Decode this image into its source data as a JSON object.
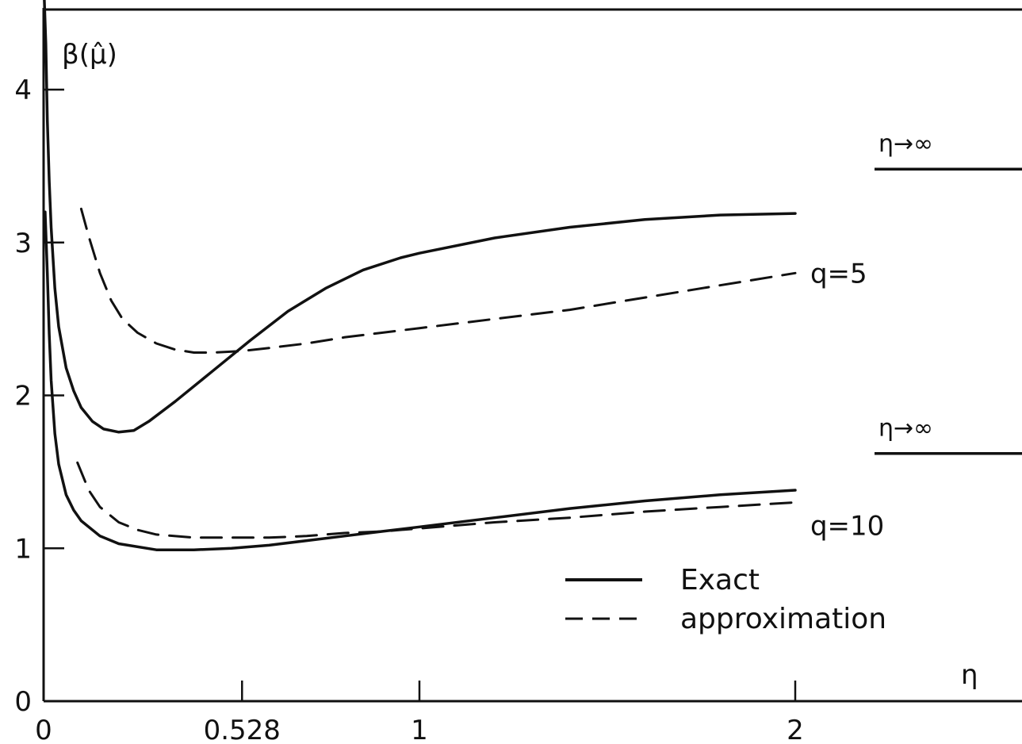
{
  "chart_data": {
    "type": "line",
    "title": "",
    "xlabel": "η",
    "ylabel": "β(μ̂)",
    "xlim": [
      0,
      2
    ],
    "ylim": [
      0,
      4.5
    ],
    "x_ticks": [
      {
        "value": 0,
        "label": "0"
      },
      {
        "value": 0.528,
        "label": "0.528"
      },
      {
        "value": 1,
        "label": "1"
      },
      {
        "value": 2,
        "label": "2"
      }
    ],
    "y_ticks": [
      {
        "value": 0,
        "label": "0"
      },
      {
        "value": 1,
        "label": "1"
      },
      {
        "value": 2,
        "label": "2"
      },
      {
        "value": 3,
        "label": "3"
      },
      {
        "value": 4,
        "label": "4"
      }
    ],
    "grid": false,
    "legend": {
      "placement": "bottom-right",
      "entries": [
        {
          "label": "Exact",
          "style": "solid"
        },
        {
          "label": "approximation",
          "style": "dashed"
        }
      ]
    },
    "series": [
      {
        "group": "q5",
        "style": "solid",
        "points": [
          [
            0.002,
            4.6
          ],
          [
            0.006,
            4.3
          ],
          [
            0.01,
            3.8
          ],
          [
            0.015,
            3.4
          ],
          [
            0.02,
            3.1
          ],
          [
            0.03,
            2.7
          ],
          [
            0.04,
            2.45
          ],
          [
            0.06,
            2.18
          ],
          [
            0.08,
            2.03
          ],
          [
            0.1,
            1.92
          ],
          [
            0.13,
            1.83
          ],
          [
            0.16,
            1.78
          ],
          [
            0.2,
            1.76
          ],
          [
            0.24,
            1.77
          ],
          [
            0.28,
            1.83
          ],
          [
            0.35,
            1.96
          ],
          [
            0.45,
            2.16
          ],
          [
            0.55,
            2.36
          ],
          [
            0.65,
            2.55
          ],
          [
            0.75,
            2.7
          ],
          [
            0.85,
            2.82
          ],
          [
            0.95,
            2.9
          ],
          [
            1.0,
            2.93
          ],
          [
            1.2,
            3.03
          ],
          [
            1.4,
            3.1
          ],
          [
            1.6,
            3.15
          ],
          [
            1.8,
            3.18
          ],
          [
            2.0,
            3.19
          ]
        ]
      },
      {
        "group": "q5",
        "style": "dashed",
        "points": [
          [
            0.1,
            3.22
          ],
          [
            0.12,
            3.04
          ],
          [
            0.15,
            2.8
          ],
          [
            0.18,
            2.62
          ],
          [
            0.21,
            2.5
          ],
          [
            0.25,
            2.41
          ],
          [
            0.3,
            2.34
          ],
          [
            0.35,
            2.3
          ],
          [
            0.4,
            2.28
          ],
          [
            0.45,
            2.28
          ],
          [
            0.528,
            2.29
          ],
          [
            0.6,
            2.31
          ],
          [
            0.7,
            2.34
          ],
          [
            0.8,
            2.38
          ],
          [
            0.9,
            2.41
          ],
          [
            1.0,
            2.44
          ],
          [
            1.2,
            2.5
          ],
          [
            1.4,
            2.56
          ],
          [
            1.6,
            2.64
          ],
          [
            1.8,
            2.72
          ],
          [
            2.0,
            2.8
          ]
        ]
      },
      {
        "group": "q10",
        "style": "solid",
        "points": [
          [
            0.004,
            3.2
          ],
          [
            0.01,
            2.8
          ],
          [
            0.015,
            2.4
          ],
          [
            0.02,
            2.1
          ],
          [
            0.03,
            1.75
          ],
          [
            0.04,
            1.55
          ],
          [
            0.06,
            1.35
          ],
          [
            0.08,
            1.25
          ],
          [
            0.1,
            1.18
          ],
          [
            0.15,
            1.08
          ],
          [
            0.2,
            1.03
          ],
          [
            0.3,
            0.99
          ],
          [
            0.4,
            0.99
          ],
          [
            0.5,
            1.0
          ],
          [
            0.6,
            1.02
          ],
          [
            0.7,
            1.05
          ],
          [
            0.8,
            1.08
          ],
          [
            0.9,
            1.11
          ],
          [
            1.0,
            1.14
          ],
          [
            1.2,
            1.2
          ],
          [
            1.4,
            1.26
          ],
          [
            1.6,
            1.31
          ],
          [
            1.8,
            1.35
          ],
          [
            2.0,
            1.38
          ]
        ]
      },
      {
        "group": "q10",
        "style": "dashed",
        "points": [
          [
            0.09,
            1.56
          ],
          [
            0.12,
            1.38
          ],
          [
            0.15,
            1.27
          ],
          [
            0.2,
            1.17
          ],
          [
            0.25,
            1.12
          ],
          [
            0.3,
            1.09
          ],
          [
            0.4,
            1.07
          ],
          [
            0.5,
            1.07
          ],
          [
            0.6,
            1.07
          ],
          [
            0.7,
            1.08
          ],
          [
            0.8,
            1.1
          ],
          [
            0.9,
            1.11
          ],
          [
            1.0,
            1.13
          ],
          [
            1.2,
            1.17
          ],
          [
            1.4,
            1.2
          ],
          [
            1.6,
            1.24
          ],
          [
            1.8,
            1.27
          ],
          [
            2.0,
            1.3
          ]
        ]
      }
    ],
    "curve_labels": [
      {
        "text": "q=5",
        "x": 2.04,
        "y": 2.8
      },
      {
        "text": "q=10",
        "x": 2.04,
        "y": 1.15
      }
    ],
    "limit_lines": [
      {
        "label": "η→∞",
        "group": "q5",
        "y": 3.48
      },
      {
        "label": "η→∞",
        "group": "q10",
        "y": 1.62
      }
    ]
  }
}
